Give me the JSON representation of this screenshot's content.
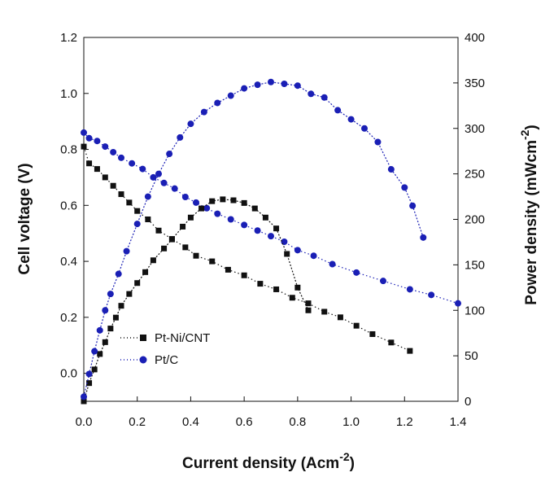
{
  "chart_data": {
    "type": "scatter",
    "xlabel": "Current density (Acm",
    "xlabel_sup": "-2",
    "xlabel_end": ")",
    "ylabel_left": "Cell voltage (V)",
    "ylabel_right": "Power density (mWcm",
    "ylabel_right_sup": "-2",
    "ylabel_right_end": ")",
    "xlim": [
      0.0,
      1.4
    ],
    "ylim_left": [
      -0.1,
      1.2
    ],
    "ylim_right": [
      0,
      400
    ],
    "x_ticks": [
      "0.0",
      "0.2",
      "0.4",
      "0.6",
      "0.8",
      "1.0",
      "1.2",
      "1.4"
    ],
    "y_left_ticks": [
      "0.0",
      "0.2",
      "0.4",
      "0.6",
      "0.8",
      "1.0",
      "1.2"
    ],
    "y_right_ticks": [
      "0",
      "50",
      "100",
      "150",
      "200",
      "250",
      "300",
      "350",
      "400"
    ],
    "legend": [
      {
        "label": "Pt-Ni/CNT",
        "color": "#111111"
      },
      {
        "label": "Pt/C",
        "color": "#1a1fb5"
      }
    ],
    "grid": false,
    "series": [
      {
        "name": "Pt-Ni/CNT",
        "kind": "voltage",
        "axis": "left",
        "color": "#111111",
        "marker": "square",
        "x": [
          0.0,
          0.02,
          0.05,
          0.08,
          0.11,
          0.14,
          0.17,
          0.2,
          0.24,
          0.28,
          0.33,
          0.38,
          0.42,
          0.48,
          0.54,
          0.6,
          0.66,
          0.72,
          0.78,
          0.84,
          0.9,
          0.96,
          1.02,
          1.08,
          1.15,
          1.22
        ],
        "y": [
          0.81,
          0.75,
          0.73,
          0.7,
          0.67,
          0.64,
          0.61,
          0.58,
          0.55,
          0.51,
          0.48,
          0.45,
          0.42,
          0.4,
          0.37,
          0.35,
          0.32,
          0.3,
          0.27,
          0.25,
          0.22,
          0.2,
          0.17,
          0.14,
          0.11,
          0.08
        ]
      },
      {
        "name": "Pt/C",
        "kind": "voltage",
        "axis": "left",
        "color": "#1a1fb5",
        "marker": "circle",
        "x": [
          0.0,
          0.02,
          0.05,
          0.08,
          0.11,
          0.14,
          0.18,
          0.22,
          0.26,
          0.3,
          0.34,
          0.38,
          0.42,
          0.46,
          0.5,
          0.55,
          0.6,
          0.65,
          0.7,
          0.75,
          0.8,
          0.86,
          0.93,
          1.02,
          1.12,
          1.22,
          1.3,
          1.4
        ],
        "y": [
          0.86,
          0.84,
          0.83,
          0.81,
          0.79,
          0.77,
          0.75,
          0.73,
          0.7,
          0.68,
          0.66,
          0.63,
          0.61,
          0.59,
          0.57,
          0.55,
          0.53,
          0.51,
          0.49,
          0.47,
          0.44,
          0.42,
          0.39,
          0.36,
          0.33,
          0.3,
          0.28,
          0.25
        ]
      },
      {
        "name": "Pt-Ni/CNT",
        "kind": "power",
        "axis": "right",
        "color": "#111111",
        "marker": "square",
        "x": [
          0.0,
          0.02,
          0.04,
          0.06,
          0.08,
          0.1,
          0.12,
          0.14,
          0.17,
          0.2,
          0.23,
          0.26,
          0.3,
          0.33,
          0.37,
          0.4,
          0.44,
          0.48,
          0.52,
          0.56,
          0.6,
          0.64,
          0.68,
          0.72,
          0.76,
          0.8,
          0.84
        ],
        "y": [
          0,
          20,
          35,
          52,
          65,
          80,
          92,
          105,
          118,
          130,
          142,
          155,
          168,
          178,
          192,
          202,
          212,
          220,
          222,
          221,
          218,
          212,
          202,
          190,
          162,
          125,
          100
        ]
      },
      {
        "name": "Pt/C",
        "kind": "power",
        "axis": "right",
        "color": "#1a1fb5",
        "marker": "circle",
        "x": [
          0.0,
          0.02,
          0.04,
          0.06,
          0.08,
          0.1,
          0.13,
          0.16,
          0.2,
          0.24,
          0.28,
          0.32,
          0.36,
          0.4,
          0.45,
          0.5,
          0.55,
          0.6,
          0.65,
          0.7,
          0.75,
          0.8,
          0.85,
          0.9,
          0.95,
          1.0,
          1.05,
          1.1,
          1.15,
          1.2,
          1.23,
          1.27
        ],
        "y": [
          5,
          30,
          55,
          78,
          100,
          118,
          140,
          165,
          195,
          225,
          250,
          272,
          290,
          305,
          318,
          328,
          336,
          344,
          348,
          351,
          349,
          347,
          338,
          334,
          320,
          310,
          300,
          285,
          255,
          235,
          215,
          180
        ]
      }
    ]
  }
}
